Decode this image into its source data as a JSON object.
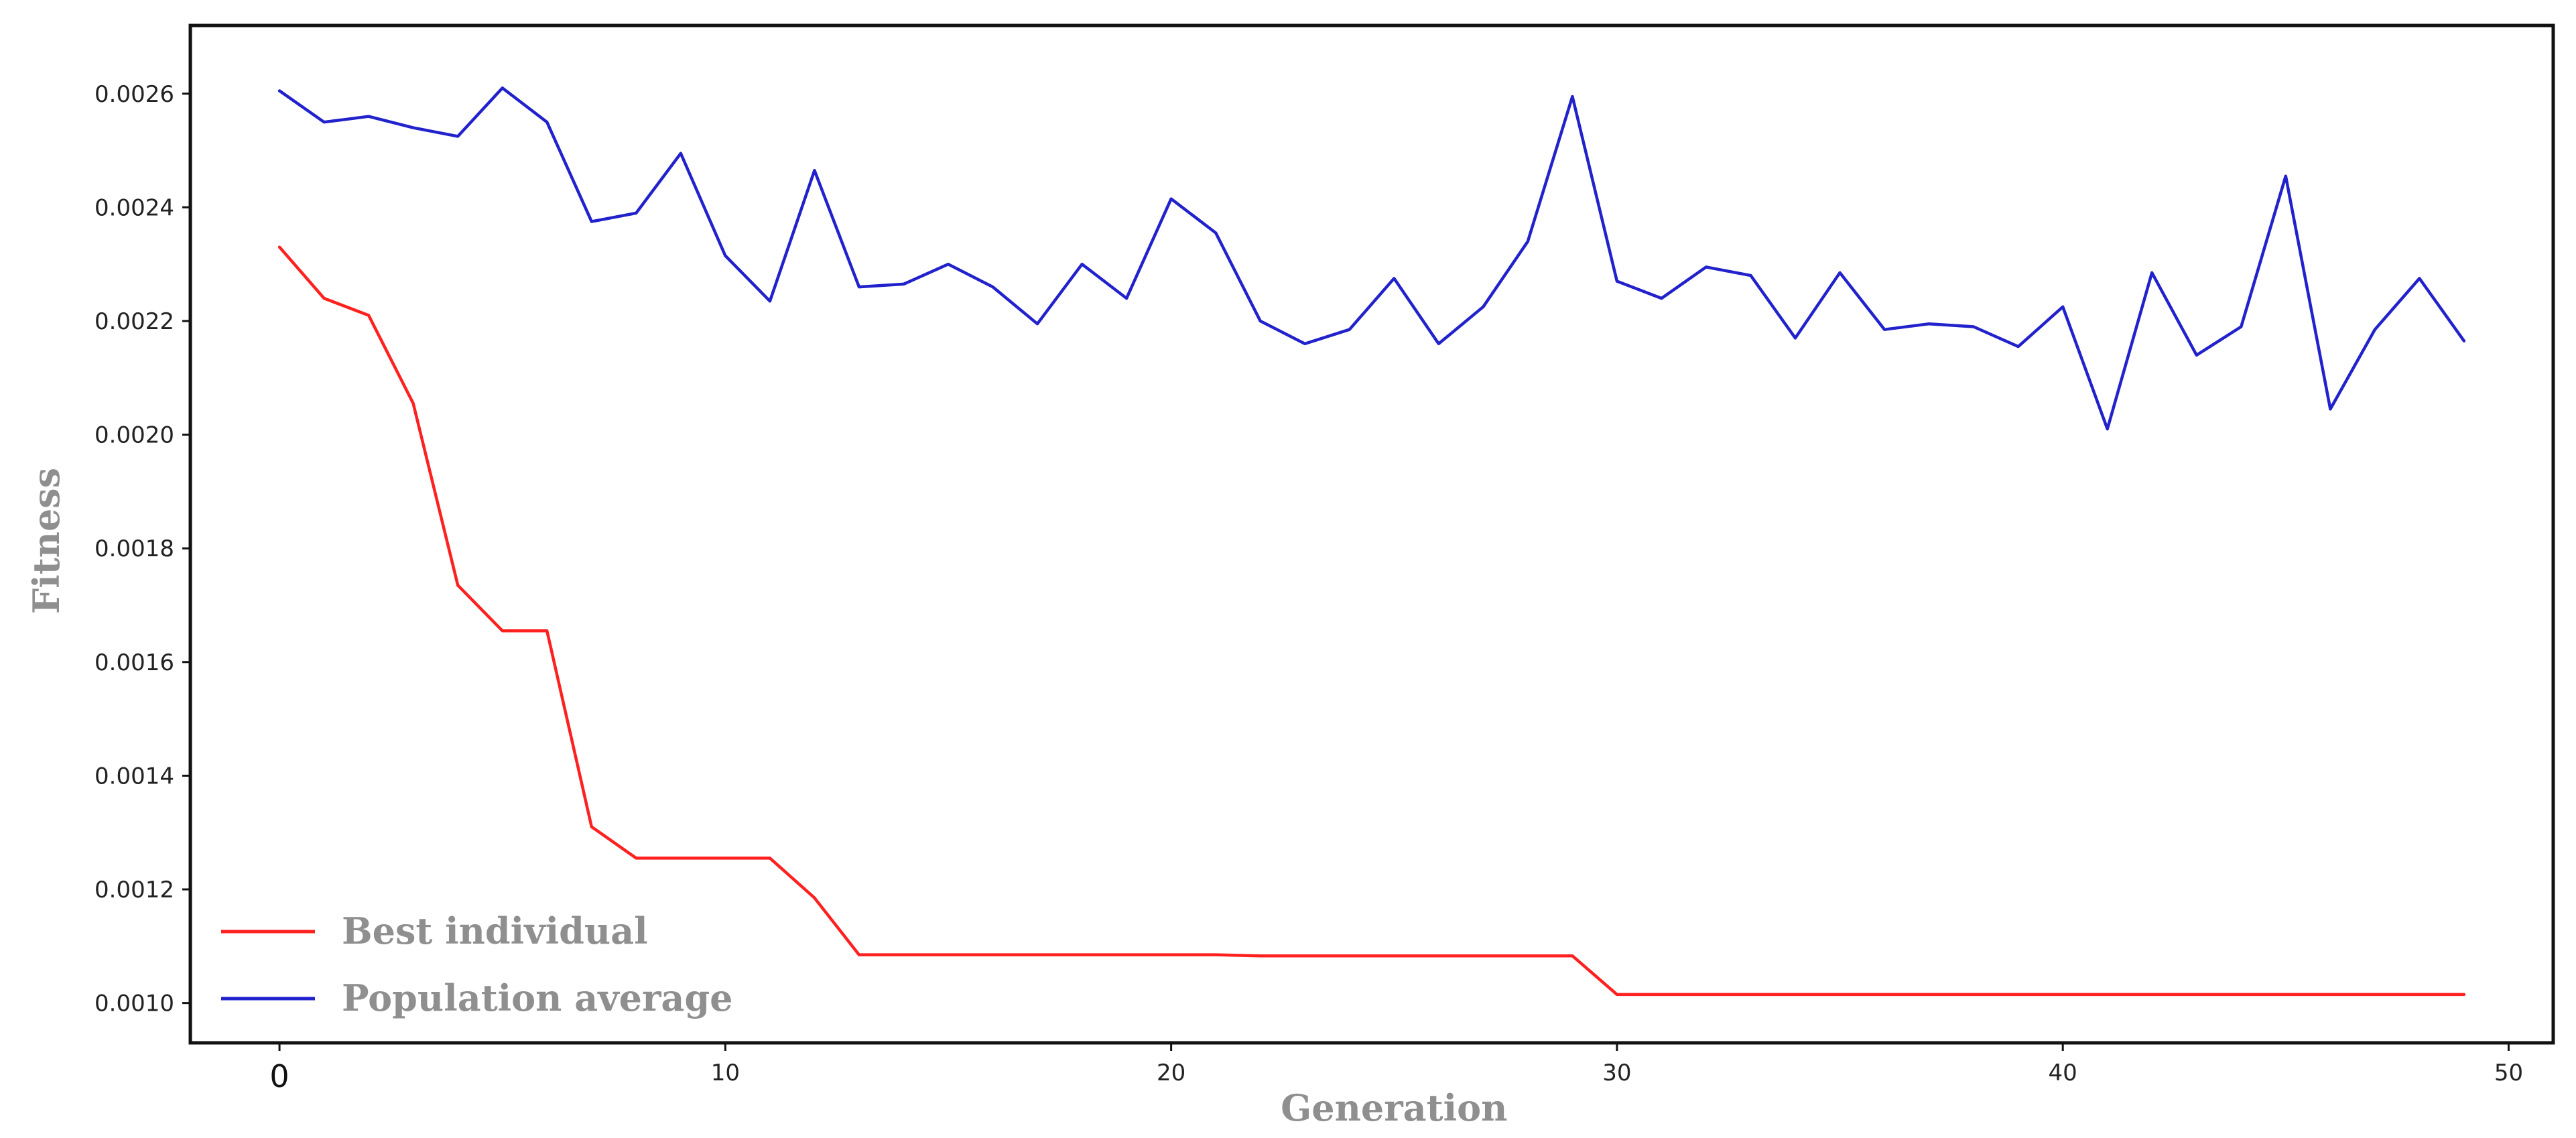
{
  "chart_data": {
    "type": "line",
    "title": "",
    "xlabel": "Generation",
    "ylabel": "Fitness",
    "xlim": [
      -2,
      51
    ],
    "ylim": [
      0.00093,
      0.00272
    ],
    "x_ticks": [
      0,
      10,
      20,
      30,
      40,
      50
    ],
    "x_tick_labels": [
      "0",
      "10",
      "20",
      "30",
      "40",
      "50"
    ],
    "y_ticks": [
      0.001,
      0.0012,
      0.0014,
      0.0016,
      0.0018,
      0.002,
      0.0022,
      0.0024,
      0.0026
    ],
    "y_tick_labels": [
      "0.0010",
      "0.0012",
      "0.0014",
      "0.0016",
      "0.0018",
      "0.0020",
      "0.0022",
      "0.0024",
      "0.0026"
    ],
    "grid": false,
    "legend_position": "bottom-left",
    "x": [
      0,
      1,
      2,
      3,
      4,
      5,
      6,
      7,
      8,
      9,
      10,
      11,
      12,
      13,
      14,
      15,
      16,
      17,
      18,
      19,
      20,
      21,
      22,
      23,
      24,
      25,
      26,
      27,
      28,
      29,
      30,
      31,
      32,
      33,
      34,
      35,
      36,
      37,
      38,
      39,
      40,
      41,
      42,
      43,
      44,
      45,
      46,
      47,
      48,
      49
    ],
    "series": [
      {
        "name": "Best individual",
        "color": "#ff2020",
        "values": [
          0.00233,
          0.00224,
          0.00221,
          0.002055,
          0.001735,
          0.001655,
          0.001655,
          0.00131,
          0.001255,
          0.001255,
          0.001255,
          0.001255,
          0.001185,
          0.001085,
          0.001085,
          0.001085,
          0.001085,
          0.001085,
          0.001085,
          0.001085,
          0.001085,
          0.001085,
          0.001083,
          0.001083,
          0.001083,
          0.001083,
          0.001083,
          0.001083,
          0.001083,
          0.001083,
          0.001015,
          0.001015,
          0.001015,
          0.001015,
          0.001015,
          0.001015,
          0.001015,
          0.001015,
          0.001015,
          0.001015,
          0.001015,
          0.001015,
          0.001015,
          0.001015,
          0.001015,
          0.001015,
          0.001015,
          0.001015,
          0.001015,
          0.001015
        ]
      },
      {
        "name": "Population average",
        "color": "#2222cc",
        "values": [
          0.002605,
          0.00255,
          0.00256,
          0.00254,
          0.002525,
          0.00261,
          0.00255,
          0.002375,
          0.00239,
          0.002495,
          0.002315,
          0.002235,
          0.002465,
          0.00226,
          0.002265,
          0.0023,
          0.00226,
          0.002195,
          0.0023,
          0.00224,
          0.002415,
          0.002355,
          0.0022,
          0.00216,
          0.002185,
          0.002275,
          0.00216,
          0.002225,
          0.00234,
          0.002595,
          0.00227,
          0.00224,
          0.002295,
          0.00228,
          0.00217,
          0.002285,
          0.002185,
          0.002195,
          0.00219,
          0.002155,
          0.002225,
          0.00201,
          0.002285,
          0.00214,
          0.00219,
          0.002455,
          0.002045,
          0.002185,
          0.002275,
          0.002165
        ]
      }
    ]
  }
}
